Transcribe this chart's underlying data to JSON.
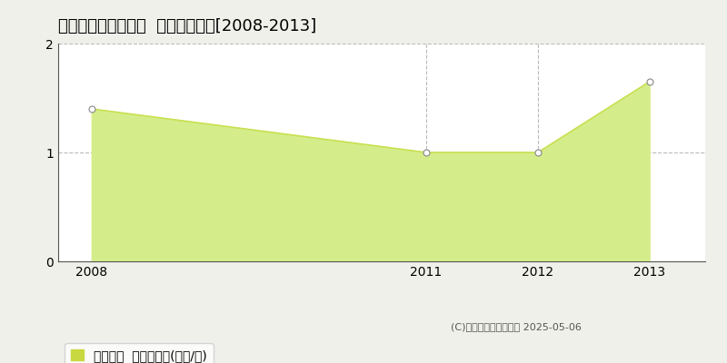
{
  "title": "常呂郡佐呂間町幸町  土地価格推移[2008-2013]",
  "x": [
    2008,
    2011,
    2012,
    2013
  ],
  "y": [
    1.4,
    1.0,
    1.0,
    1.65
  ],
  "xlim": [
    2007.7,
    2013.5
  ],
  "ylim": [
    0,
    2
  ],
  "yticks": [
    0,
    1,
    2
  ],
  "xticks": [
    2008,
    2011,
    2012,
    2013
  ],
  "line_color": "#c8e050",
  "fill_color": "#d4ed8a",
  "marker_color": "white",
  "marker_edge_color": "#888888",
  "grid_color": "#bbbbbb",
  "plot_bg_color": "#ffffff",
  "outer_bg_color": "#f0f0eb",
  "legend_label": "土地価格  平均坪単価(万円/坪)",
  "legend_patch_color": "#c8d840",
  "copyright_text": "(C)土地価格ドットコム 2025-05-06",
  "title_fontsize": 13,
  "axis_fontsize": 10,
  "legend_fontsize": 10,
  "vgrid_at": [
    2011,
    2012
  ]
}
